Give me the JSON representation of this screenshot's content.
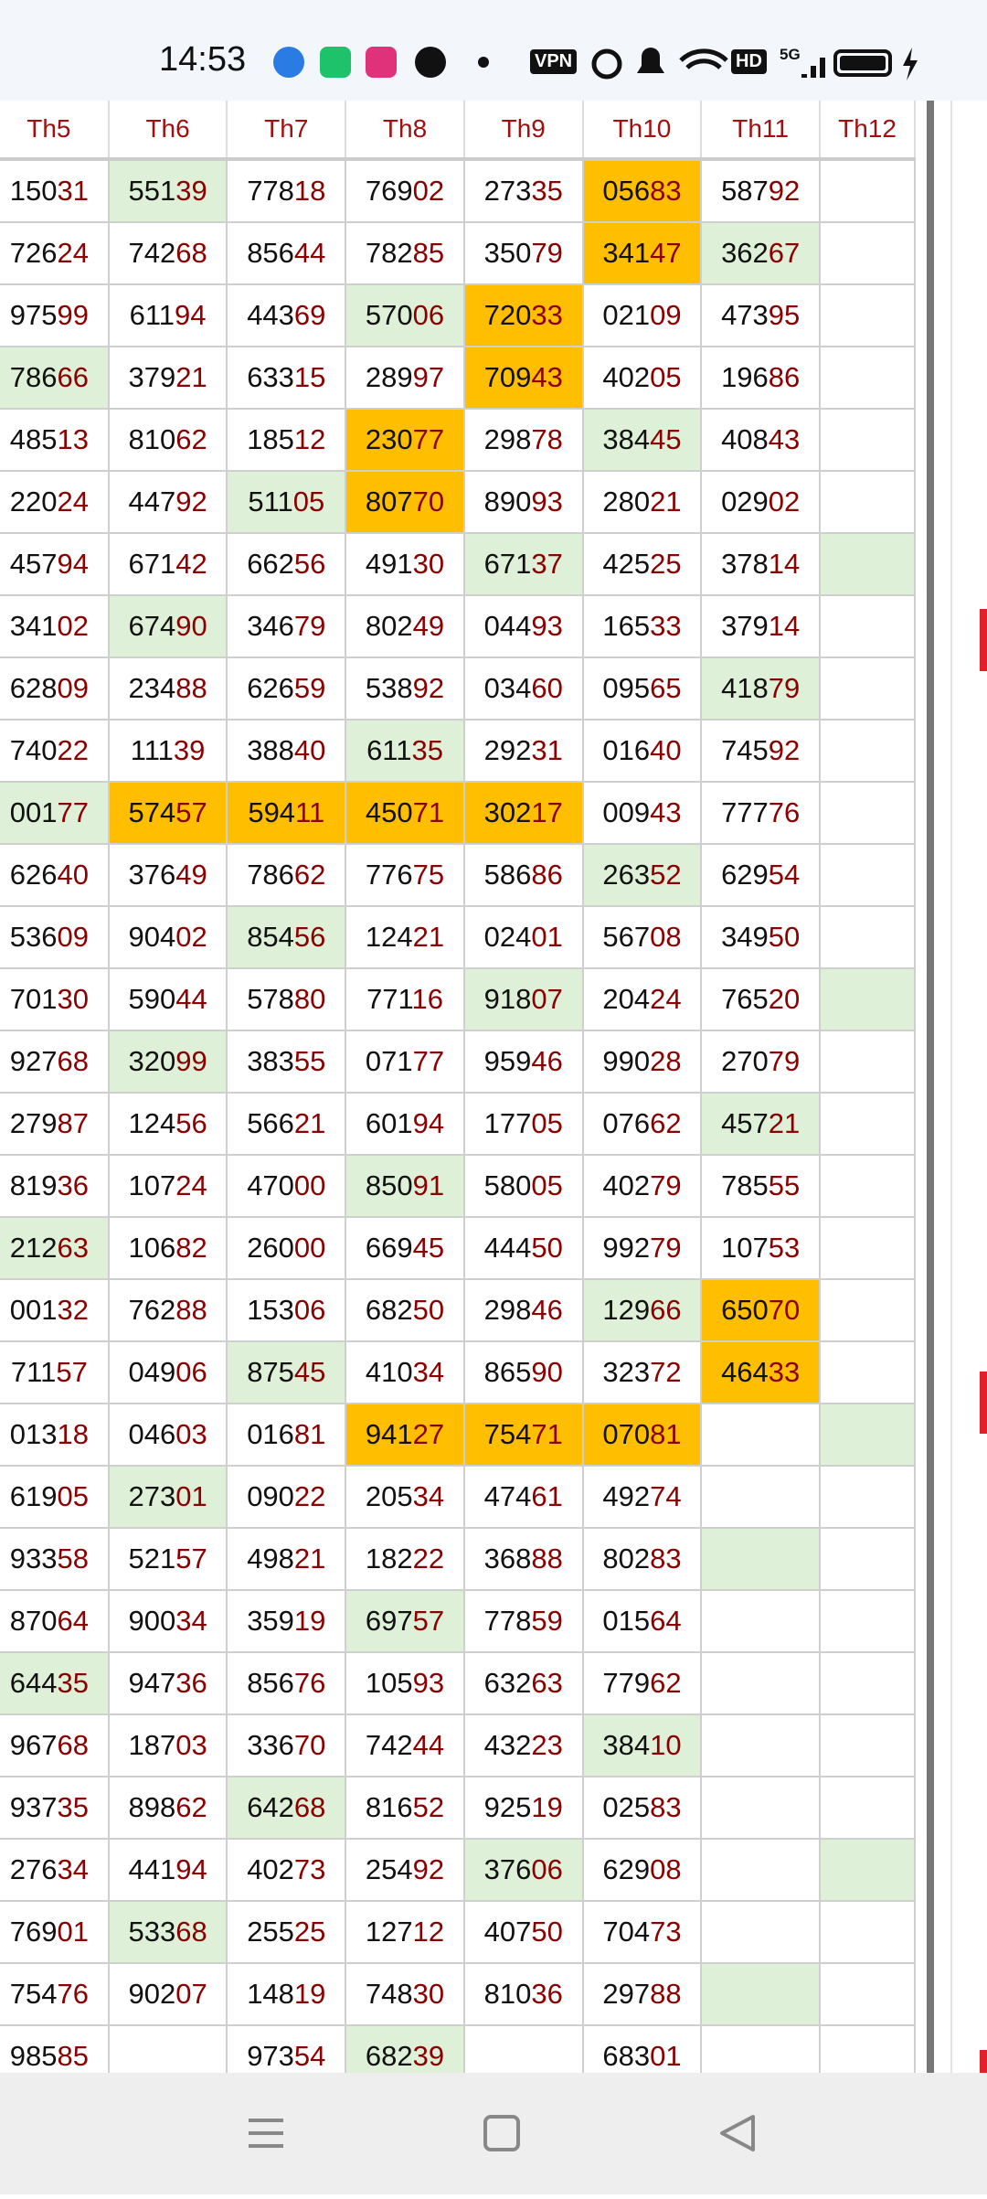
{
  "status_bar": {
    "time": "14:53",
    "badges": [
      "VPN",
      "HD",
      "5G"
    ]
  },
  "table": {
    "headers": [
      "Th5",
      "Th6",
      "Th7",
      "Th8",
      "Th9",
      "Th10",
      "Th11",
      "Th12"
    ],
    "rows": [
      [
        "15031",
        {
          "text": "55139",
          "fill": "green"
        },
        "77818",
        "76902",
        "27335",
        {
          "text": "05683",
          "fill": "orange"
        },
        "58792",
        null
      ],
      [
        "72624",
        "74268",
        "85644",
        "78285",
        "35079",
        {
          "text": "34147",
          "fill": "orange"
        },
        {
          "text": "36267",
          "fill": "green"
        },
        null
      ],
      [
        "97599",
        "61194",
        "44369",
        {
          "text": "57006",
          "fill": "green"
        },
        {
          "text": "72033",
          "fill": "orange"
        },
        "02109",
        "47395",
        null
      ],
      [
        {
          "text": "78666",
          "fill": "green"
        },
        "37921",
        "63315",
        "28997",
        {
          "text": "70943",
          "fill": "orange"
        },
        "40205",
        "19686",
        null
      ],
      [
        "48513",
        "81062",
        "18512",
        {
          "text": "23077",
          "fill": "orange"
        },
        "29878",
        {
          "text": "38445",
          "fill": "green"
        },
        "40843",
        null
      ],
      [
        "22024",
        "44792",
        {
          "text": "51105",
          "fill": "green"
        },
        {
          "text": "80770",
          "fill": "orange"
        },
        "89093",
        "28021",
        "02902",
        null
      ],
      [
        "45794",
        "67142",
        "66256",
        "49130",
        {
          "text": "67137",
          "fill": "green"
        },
        "42525",
        "37814",
        {
          "fill": "green"
        }
      ],
      [
        "34102",
        {
          "text": "67490",
          "fill": "green"
        },
        "34679",
        "80249",
        "04493",
        "16533",
        "37914",
        null
      ],
      [
        "62809",
        "23488",
        "62659",
        "53892",
        "03460",
        "09565",
        {
          "text": "41879",
          "fill": "green"
        },
        null
      ],
      [
        "74022",
        "11139",
        "38840",
        {
          "text": "61135",
          "fill": "green"
        },
        "29231",
        "01640",
        "74592",
        null
      ],
      [
        {
          "text": "00177",
          "fill": "green"
        },
        {
          "text": "57457",
          "fill": "orange"
        },
        {
          "text": "59411",
          "fill": "orange"
        },
        {
          "text": "45071",
          "fill": "orange"
        },
        {
          "text": "30217",
          "fill": "orange"
        },
        "00943",
        "77776",
        null
      ],
      [
        "62640",
        "37649",
        "78662",
        "77675",
        "58686",
        {
          "text": "26352",
          "fill": "green"
        },
        "62954",
        null
      ],
      [
        "53609",
        "90402",
        {
          "text": "85456",
          "fill": "green"
        },
        "12421",
        "02401",
        "56708",
        "34950",
        null
      ],
      [
        "70130",
        "59044",
        "57880",
        "77116",
        {
          "text": "91807",
          "fill": "green"
        },
        "20424",
        "76520",
        {
          "fill": "green"
        }
      ],
      [
        "92768",
        {
          "text": "32099",
          "fill": "green"
        },
        "38355",
        "07177",
        "95946",
        "99028",
        "27079",
        null
      ],
      [
        "27987",
        "12456",
        "56621",
        "60194",
        "17705",
        "07662",
        {
          "text": "45721",
          "fill": "green"
        },
        null
      ],
      [
        "81936",
        "10724",
        "47000",
        {
          "text": "85091",
          "fill": "green"
        },
        "58005",
        "40279",
        "78555",
        null
      ],
      [
        {
          "text": "21263",
          "fill": "green"
        },
        "10682",
        "26000",
        "66945",
        "44450",
        "99279",
        "10753",
        null
      ],
      [
        "00132",
        "76288",
        "15306",
        "68250",
        "29846",
        {
          "text": "12966",
          "fill": "green"
        },
        {
          "text": "65070",
          "fill": "orange"
        },
        null
      ],
      [
        "71157",
        "04906",
        {
          "text": "87545",
          "fill": "green"
        },
        "41034",
        "86590",
        "32372",
        {
          "text": "46433",
          "fill": "orange"
        },
        null
      ],
      [
        "01318",
        "04603",
        "01681",
        {
          "text": "94127",
          "fill": "orange"
        },
        {
          "text": "75471",
          "fill": "orange"
        },
        {
          "text": "07081",
          "fill": "orange"
        },
        null,
        {
          "fill": "green"
        }
      ],
      [
        "61905",
        {
          "text": "27301",
          "fill": "green"
        },
        "09022",
        "20534",
        "47461",
        "49274",
        null,
        null
      ],
      [
        "93358",
        "52157",
        "49821",
        "18222",
        "36888",
        "80283",
        {
          "fill": "green"
        },
        null
      ],
      [
        "87064",
        "90034",
        "35919",
        {
          "text": "69757",
          "fill": "green"
        },
        "77859",
        "01564",
        null,
        null
      ],
      [
        {
          "text": "64435",
          "fill": "green"
        },
        "94736",
        "85676",
        "10593",
        "63263",
        "77962",
        null,
        null
      ],
      [
        "96768",
        "18703",
        "33670",
        "74244",
        "43223",
        {
          "text": "38410",
          "fill": "green"
        },
        null,
        null
      ],
      [
        "93735",
        "89862",
        {
          "text": "64268",
          "fill": "green"
        },
        "81652",
        "92519",
        "02583",
        null,
        null
      ],
      [
        "27634",
        "44194",
        "40273",
        "25492",
        {
          "text": "37606",
          "fill": "green"
        },
        "62908",
        null,
        {
          "fill": "green"
        }
      ],
      [
        "76901",
        {
          "text": "53368",
          "fill": "green"
        },
        "25525",
        "12712",
        "40750",
        "70473",
        null,
        null
      ],
      [
        "75476",
        "90207",
        "14819",
        "74830",
        "81036",
        "29788",
        {
          "fill": "green"
        },
        null
      ],
      [
        "98585",
        null,
        "97354",
        {
          "text": "68239",
          "fill": "green"
        },
        null,
        "68301",
        null,
        null
      ]
    ]
  }
}
